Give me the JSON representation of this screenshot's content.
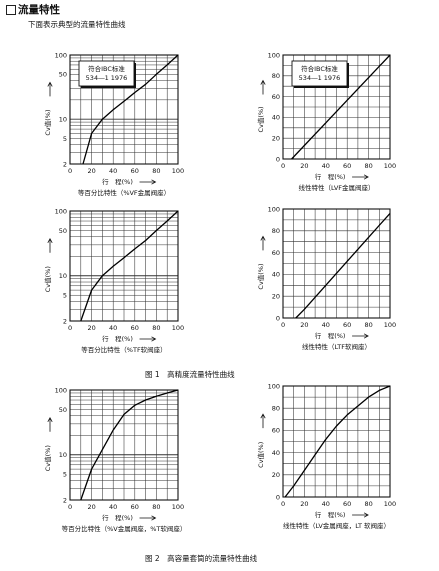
{
  "heading": "流量特性",
  "subheading": "下面表示典型的流量特性曲线",
  "figure1_caption": "图 1　高精度流量特性曲线",
  "figure2_caption": "图 2　高容量套筒的流量特性曲线",
  "standard_label": [
    "符合IBC标准",
    "534―1 1976"
  ],
  "y_axis_label": "Cv值(%)",
  "x_axis_label": "行　程(%)",
  "x_ticks": [
    "0",
    "20",
    "40",
    "60",
    "80",
    "100"
  ],
  "log_y_ticks": [
    "100",
    "50",
    "10",
    "5",
    "2"
  ],
  "lin_y_ticks": [
    "100",
    "80",
    "60",
    "40",
    "20",
    "0"
  ],
  "chart_data": [
    {
      "type": "line",
      "id": "c1",
      "scale": "log",
      "ylim": [
        2,
        100
      ],
      "xlim": [
        0,
        100
      ],
      "caption": "等百分比特性（%VF金属阀座）",
      "annotated": true,
      "series": [
        {
          "x": [
            12,
            20,
            30,
            40,
            50,
            60,
            70,
            80,
            90,
            100
          ],
          "y": [
            2,
            6,
            10,
            14,
            19,
            26,
            35,
            50,
            70,
            100
          ]
        }
      ]
    },
    {
      "type": "line",
      "id": "c2",
      "scale": "linear",
      "ylim": [
        0,
        100
      ],
      "xlim": [
        0,
        100
      ],
      "caption": "线性特性（LVF金属阀座）",
      "annotated": true,
      "series": [
        {
          "x": [
            8,
            100
          ],
          "y": [
            0,
            100
          ]
        }
      ]
    },
    {
      "type": "line",
      "id": "c3",
      "scale": "log",
      "ylim": [
        2,
        100
      ],
      "xlim": [
        0,
        100
      ],
      "caption": "等百分比特性（%TF软阀座）",
      "annotated": false,
      "series": [
        {
          "x": [
            10,
            20,
            30,
            40,
            50,
            60,
            70,
            80,
            90,
            100
          ],
          "y": [
            2,
            6,
            10,
            14,
            19,
            26,
            35,
            50,
            70,
            100
          ]
        }
      ]
    },
    {
      "type": "line",
      "id": "c4",
      "scale": "linear",
      "ylim": [
        0,
        100
      ],
      "xlim": [
        0,
        100
      ],
      "caption": "线性特性（LTF软阀座）",
      "annotated": false,
      "series": [
        {
          "x": [
            12,
            20,
            40,
            60,
            80,
            100
          ],
          "y": [
            0,
            8,
            30,
            52,
            74,
            96
          ]
        }
      ]
    },
    {
      "type": "line",
      "id": "c5",
      "scale": "log",
      "ylim": [
        2,
        100
      ],
      "xlim": [
        0,
        100
      ],
      "caption": "等百分比特性（%V金属阀座，%T软阀座）",
      "annotated": false,
      "series": [
        {
          "x": [
            10,
            20,
            30,
            40,
            50,
            60,
            70,
            80,
            90,
            100
          ],
          "y": [
            2,
            6,
            12,
            24,
            42,
            58,
            70,
            80,
            90,
            100
          ]
        }
      ]
    },
    {
      "type": "line",
      "id": "c6",
      "scale": "linear",
      "ylim": [
        0,
        100
      ],
      "xlim": [
        0,
        100
      ],
      "caption": "线性特性（LV金属阀座，LT 软阀座）",
      "annotated": false,
      "series": [
        {
          "x": [
            2,
            10,
            20,
            30,
            40,
            50,
            60,
            70,
            80,
            90,
            100
          ],
          "y": [
            0,
            10,
            24,
            38,
            52,
            64,
            74,
            82,
            90,
            96,
            100
          ]
        }
      ]
    }
  ]
}
